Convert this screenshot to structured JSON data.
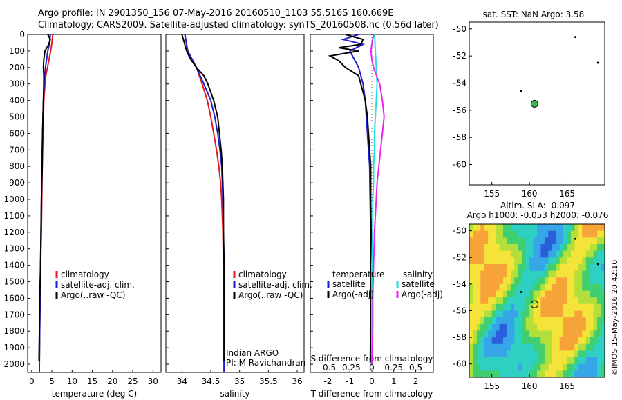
{
  "header": {
    "line1": "Argo profile: IN 2901350_156 07-May-2016 20160510_1103 55.516S 160.669E",
    "line2": "Climatology: CARS2009. Satellite-adjusted climatology: synTS_20160508.nc (0.56d later)"
  },
  "colors": {
    "climatology": "#e41a1c",
    "satellite_adj": "#1f1fcf",
    "argo": "#000000",
    "sal_satellite": "#20e0e0",
    "sal_argo": "#ee22ee",
    "float_marker": "#3cb44b"
  },
  "chart_data": [
    {
      "id": "temperature",
      "type": "line",
      "xlabel": "temperature (deg C)",
      "xlim": [
        -1,
        32
      ],
      "xticks": [
        0,
        5,
        10,
        15,
        20,
        25,
        30
      ],
      "ylim": [
        2050,
        0
      ],
      "yticks": [
        0,
        100,
        200,
        300,
        400,
        500,
        600,
        700,
        800,
        900,
        1000,
        1100,
        1200,
        1300,
        1400,
        1500,
        1600,
        1700,
        1800,
        1900,
        2000
      ],
      "legend": [
        "climatology",
        "satellite-adj. clim.",
        "Argo(..raw -QC)"
      ],
      "series": [
        {
          "name": "climatology",
          "color": "climatology",
          "depth": [
            0,
            50,
            100,
            150,
            200,
            250,
            300,
            400,
            600,
            800,
            1000,
            1200,
            1400,
            1600,
            1800,
            2000,
            2050
          ],
          "x": [
            5.2,
            5.0,
            4.7,
            4.3,
            3.9,
            3.5,
            3.3,
            3.0,
            2.8,
            2.6,
            2.5,
            2.4,
            2.2,
            2.1,
            2.0,
            1.9,
            1.9
          ]
        },
        {
          "name": "satellite-adj. clim.",
          "color": "satellite_adj",
          "depth": [
            0,
            50,
            100,
            150,
            200,
            250,
            300,
            400,
            600,
            800,
            1000,
            1200,
            1400,
            1600,
            1800,
            2000,
            2050
          ],
          "x": [
            4.6,
            4.4,
            4.0,
            3.7,
            3.4,
            3.2,
            3.1,
            2.9,
            2.7,
            2.5,
            2.4,
            2.3,
            2.2,
            2.1,
            2.0,
            1.9,
            1.9
          ]
        },
        {
          "name": "Argo(..raw -QC)",
          "color": "argo",
          "depth": [
            0,
            30,
            60,
            100,
            150,
            200,
            250,
            300,
            400,
            600,
            800,
            1000,
            1200,
            1400,
            1600,
            1800,
            1980
          ],
          "x": [
            4.0,
            4.6,
            4.2,
            3.3,
            3.0,
            2.9,
            3.0,
            3.0,
            2.9,
            2.7,
            2.6,
            2.4,
            2.3,
            2.2,
            2.0,
            1.9,
            1.8
          ]
        }
      ]
    },
    {
      "id": "salinity",
      "type": "line",
      "xlabel": "salinity",
      "xlim": [
        33.72,
        36.12
      ],
      "xticks": [
        34,
        34.5,
        35,
        35.5,
        36
      ],
      "ylim": [
        2050,
        0
      ],
      "legend": [
        "climatology",
        "satellite-adj. clim.",
        "Argo(..raw -QC)"
      ],
      "annotation": [
        "Indian ARGO",
        "PI: M Ravichandran"
      ],
      "series": [
        {
          "name": "climatology",
          "color": "climatology",
          "depth": [
            0,
            100,
            200,
            300,
            400,
            500,
            600,
            700,
            800,
            900,
            1000,
            1200,
            1400,
            1600,
            1800,
            2000,
            2050
          ],
          "x": [
            34.05,
            34.1,
            34.25,
            34.35,
            34.44,
            34.5,
            34.55,
            34.6,
            34.64,
            34.67,
            34.69,
            34.71,
            34.72,
            34.73,
            34.73,
            34.73,
            34.73
          ]
        },
        {
          "name": "satellite-adj. clim.",
          "color": "satellite_adj",
          "depth": [
            0,
            100,
            200,
            300,
            400,
            500,
            600,
            700,
            800,
            900,
            1000,
            1200,
            1400,
            1600,
            1800,
            2000,
            2050
          ],
          "x": [
            34.05,
            34.1,
            34.25,
            34.38,
            34.5,
            34.57,
            34.62,
            34.66,
            34.69,
            34.7,
            34.71,
            34.72,
            34.73,
            34.73,
            34.73,
            34.73,
            34.73
          ]
        },
        {
          "name": "Argo(..raw -QC)",
          "color": "argo",
          "depth": [
            0,
            50,
            100,
            150,
            200,
            250,
            300,
            400,
            500,
            600,
            700,
            800,
            900,
            1000,
            1200,
            1400,
            1600,
            1800,
            1980
          ],
          "x": [
            34.0,
            34.04,
            34.08,
            34.15,
            34.25,
            34.38,
            34.45,
            34.55,
            34.62,
            34.65,
            34.68,
            34.7,
            34.71,
            34.72,
            34.72,
            34.73,
            34.73,
            34.73,
            34.73
          ]
        }
      ]
    },
    {
      "id": "differences",
      "type": "line",
      "xlabel": "T difference from climatology",
      "xlim": [
        -2.8,
        2.8
      ],
      "xticks": [
        -2,
        -1,
        0,
        1,
        2
      ],
      "top_label": "S difference from climatology",
      "s_xticks": [
        -0.5,
        -0.25,
        0,
        0.25,
        0.5
      ],
      "s_xlim": [
        -0.7,
        0.7
      ],
      "ylim": [
        2050,
        0
      ],
      "legend": {
        "temperature_heading": "temperature",
        "temperature": [
          "satellite",
          "Argo(-adj)"
        ],
        "salinity_heading": "salinity",
        "salinity": [
          "satellite",
          "Argo(-adj)"
        ]
      },
      "series": [
        {
          "name": "temperature satellite",
          "color": "satellite_adj",
          "scale": "T",
          "depth": [
            0,
            30,
            60,
            100,
            150,
            200,
            250,
            300,
            400,
            500,
            600,
            700,
            800,
            1000,
            1200,
            1400,
            1600,
            1800,
            2000
          ],
          "x": [
            -0.6,
            -1.3,
            -0.4,
            -1.0,
            -0.8,
            -0.6,
            -0.5,
            -0.4,
            -0.3,
            -0.25,
            -0.2,
            -0.15,
            -0.1,
            -0.08,
            -0.05,
            -0.03,
            -0.02,
            -0.02,
            -0.01
          ]
        },
        {
          "name": "temperature Argo(-adj)",
          "color": "argo",
          "scale": "T",
          "depth": [
            0,
            30,
            60,
            80,
            100,
            130,
            160,
            200,
            250,
            300,
            400,
            500,
            600,
            700,
            800,
            900,
            1000,
            1200,
            1400,
            1600,
            1800,
            1990
          ],
          "x": [
            -1.2,
            -0.4,
            -0.5,
            -1.5,
            -0.6,
            -1.9,
            -1.5,
            -1.2,
            -0.6,
            -0.5,
            -0.3,
            -0.2,
            -0.15,
            -0.1,
            -0.05,
            -0.05,
            -0.05,
            -0.03,
            -0.04,
            -0.05,
            -0.06,
            -0.07
          ]
        },
        {
          "name": "salinity satellite",
          "color": "sal_satellite",
          "scale": "S",
          "depth": [
            0,
            100,
            200,
            300,
            400,
            500,
            600,
            700,
            800,
            900,
            1000,
            1200,
            1400,
            1600,
            1800,
            2000
          ],
          "x": [
            0.03,
            0.04,
            0.05,
            0.06,
            0.05,
            0.04,
            0.03,
            0.03,
            0.02,
            0.02,
            0.01,
            0.01,
            0.0,
            0.0,
            0.0,
            0.0
          ]
        },
        {
          "name": "salinity Argo(-adj)",
          "color": "sal_argo",
          "scale": "S",
          "depth": [
            0,
            60,
            100,
            150,
            200,
            260,
            300,
            400,
            500,
            550,
            600,
            700,
            800,
            900,
            1000,
            1100,
            1200,
            1400,
            1600,
            1800,
            2000
          ],
          "x": [
            0.02,
            0.0,
            -0.01,
            0.0,
            0.02,
            0.06,
            0.09,
            0.12,
            0.14,
            0.13,
            0.12,
            0.1,
            0.08,
            0.06,
            0.05,
            0.04,
            0.03,
            0.02,
            0.01,
            0.01,
            0.0
          ]
        }
      ]
    },
    {
      "id": "sst_map",
      "type": "scatter",
      "title": "sat. SST: NaN Argo: 3.58",
      "xlim": [
        152,
        170
      ],
      "xticks": [
        155,
        160,
        165
      ],
      "ylim": [
        -61.5,
        -49.5
      ],
      "yticks": [
        -50,
        -52,
        -54,
        -56,
        -58,
        -60
      ],
      "float": {
        "lon": 160.669,
        "lat": -55.516
      },
      "islands": [
        {
          "lon": 166.1,
          "lat": -50.6
        },
        {
          "lon": 169.1,
          "lat": -52.5
        },
        {
          "lon": 158.9,
          "lat": -54.6
        }
      ]
    },
    {
      "id": "sla_map",
      "type": "heatmap",
      "title_line1": "Altim. SLA: -0.097",
      "title_line2": "Argo h1000: -0.053 h2000: -0.076",
      "xlim": [
        152,
        170
      ],
      "xticks": [
        155,
        160,
        165
      ],
      "ylim": [
        -61,
        -49.5
      ],
      "yticks": [
        -50,
        -52,
        -54,
        -56,
        -58,
        -60
      ],
      "float": {
        "lon": 160.669,
        "lat": -55.516
      },
      "islands": [
        {
          "lon": 166.1,
          "lat": -50.6
        },
        {
          "lon": 169.1,
          "lat": -52.5
        },
        {
          "lon": 158.9,
          "lat": -54.6
        }
      ],
      "colormap": [
        "#2b5fd9",
        "#36a6e8",
        "#2fd0c4",
        "#3fce70",
        "#b2df3a",
        "#f4e43a",
        "#f6a43a",
        "#e8632c"
      ]
    }
  ],
  "credit": "©IMOS 15-May-2016 20:42:10"
}
